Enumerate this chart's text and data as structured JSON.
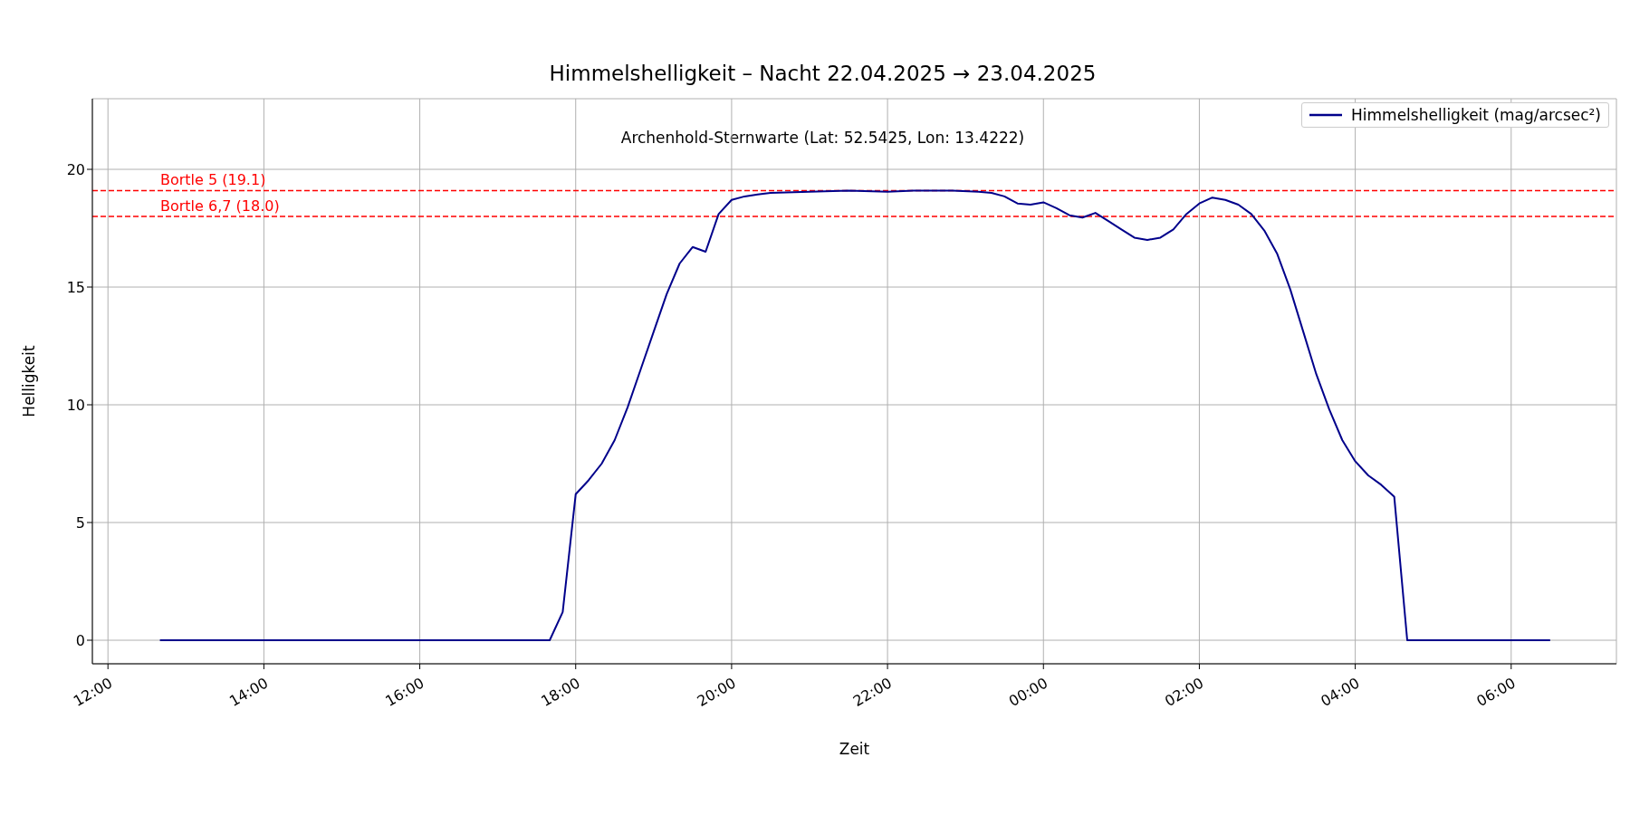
{
  "chart_data": {
    "type": "line",
    "title": "Himmelshelligkeit – Nacht 22.04.2025 → 23.04.2025",
    "xlabel": "Zeit",
    "ylabel": "Helligkeit",
    "annotations": [
      "Archenhold-Sternwarte (Lat: 52.5425, Lon: 13.4222)"
    ],
    "x": [
      "2025-04-22T12:40",
      "2025-04-22T17:40",
      "2025-04-22T17:50",
      "2025-04-22T18:00",
      "2025-04-22T18:10",
      "2025-04-22T18:20",
      "2025-04-22T18:30",
      "2025-04-22T18:40",
      "2025-04-22T18:50",
      "2025-04-22T19:00",
      "2025-04-22T19:10",
      "2025-04-22T19:20",
      "2025-04-22T19:30",
      "2025-04-22T19:40",
      "2025-04-22T19:50",
      "2025-04-22T20:00",
      "2025-04-22T20:10",
      "2025-04-22T20:20",
      "2025-04-22T20:30",
      "2025-04-22T21:00",
      "2025-04-22T21:30",
      "2025-04-22T22:00",
      "2025-04-22T22:20",
      "2025-04-22T22:50",
      "2025-04-22T23:10",
      "2025-04-22T23:20",
      "2025-04-22T23:30",
      "2025-04-22T23:40",
      "2025-04-22T23:50",
      "2025-04-23T00:00",
      "2025-04-23T00:10",
      "2025-04-23T00:20",
      "2025-04-23T00:30",
      "2025-04-23T00:40",
      "2025-04-23T00:50",
      "2025-04-23T01:00",
      "2025-04-23T01:10",
      "2025-04-23T01:20",
      "2025-04-23T01:30",
      "2025-04-23T01:40",
      "2025-04-23T01:50",
      "2025-04-23T02:00",
      "2025-04-23T02:10",
      "2025-04-23T02:20",
      "2025-04-23T02:30",
      "2025-04-23T02:40",
      "2025-04-23T02:50",
      "2025-04-23T03:00",
      "2025-04-23T03:10",
      "2025-04-23T03:20",
      "2025-04-23T03:30",
      "2025-04-23T03:40",
      "2025-04-23T03:50",
      "2025-04-23T04:00",
      "2025-04-23T04:10",
      "2025-04-23T04:20",
      "2025-04-23T04:30",
      "2025-04-23T04:40",
      "2025-04-23T06:30"
    ],
    "series": [
      {
        "name": "Himmelshelligkeit (mag/arcsec²)",
        "color": "#00008b",
        "values": [
          0,
          0,
          1.2,
          6.2,
          6.8,
          7.5,
          8.5,
          9.9,
          11.5,
          13.1,
          14.7,
          16.0,
          16.7,
          16.5,
          18.1,
          18.7,
          18.85,
          18.93,
          19.0,
          19.05,
          19.1,
          19.05,
          19.1,
          19.1,
          19.05,
          19.0,
          18.85,
          18.55,
          18.5,
          18.6,
          18.35,
          18.05,
          17.95,
          18.15,
          17.8,
          17.45,
          17.1,
          17.0,
          17.1,
          17.45,
          18.1,
          18.55,
          18.8,
          18.7,
          18.5,
          18.1,
          17.4,
          16.4,
          14.9,
          13.1,
          11.3,
          9.8,
          8.5,
          7.6,
          7.0,
          6.6,
          6.1,
          0,
          0
        ]
      }
    ],
    "xlim": [
      "2025-04-22T11:48",
      "2025-04-23T07:21"
    ],
    "xticks": [
      {
        "value": "2025-04-22T12:00",
        "label": "12:00"
      },
      {
        "value": "2025-04-22T14:00",
        "label": "14:00"
      },
      {
        "value": "2025-04-22T16:00",
        "label": "16:00"
      },
      {
        "value": "2025-04-22T18:00",
        "label": "18:00"
      },
      {
        "value": "2025-04-22T20:00",
        "label": "20:00"
      },
      {
        "value": "2025-04-22T22:00",
        "label": "22:00"
      },
      {
        "value": "2025-04-23T00:00",
        "label": "00:00"
      },
      {
        "value": "2025-04-23T02:00",
        "label": "02:00"
      },
      {
        "value": "2025-04-23T04:00",
        "label": "04:00"
      },
      {
        "value": "2025-04-23T06:00",
        "label": "06:00"
      }
    ],
    "ylim": [
      -1,
      23
    ],
    "yticks": [
      0,
      5,
      10,
      15,
      20
    ],
    "ref_lines": [
      {
        "axis": "y",
        "value": 19.1,
        "label": "Bortle 5 (19.1)",
        "color": "#ff0000",
        "line_style": "dashed"
      },
      {
        "axis": "y",
        "value": 18.0,
        "label": "Bortle 6,7 (18.0)",
        "color": "#ff0000",
        "line_style": "dashed"
      }
    ],
    "grid": true,
    "legend": "top right",
    "marker": "none",
    "line_style": "solid"
  }
}
